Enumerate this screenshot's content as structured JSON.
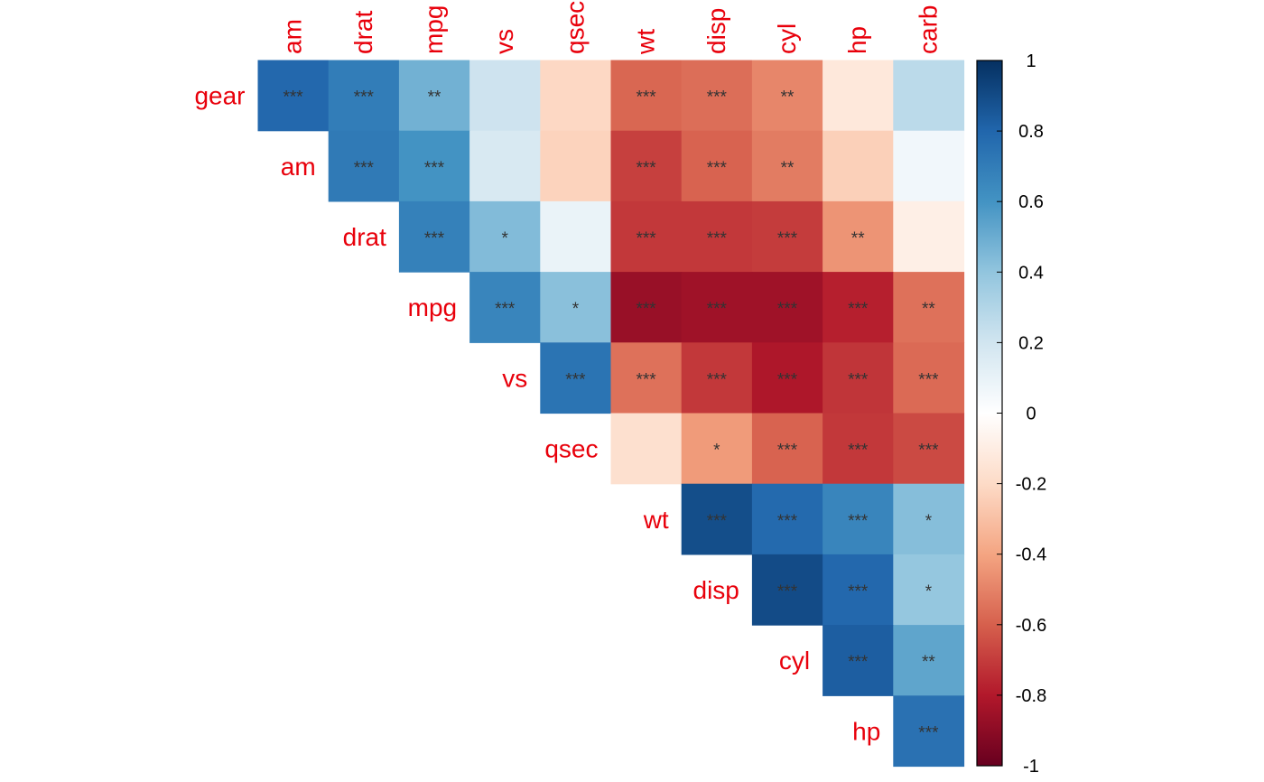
{
  "chart_data": {
    "type": "heatmap",
    "title": "",
    "columns": [
      "am",
      "drat",
      "mpg",
      "vs",
      "qsec",
      "wt",
      "disp",
      "cyl",
      "hp",
      "carb"
    ],
    "rows": [
      "gear",
      "am",
      "drat",
      "mpg",
      "vs",
      "qsec",
      "wt",
      "disp",
      "cyl",
      "hp"
    ],
    "layout": "upper-triangle",
    "cells": [
      {
        "row": "gear",
        "col": "am",
        "value": 0.79,
        "sig": "***"
      },
      {
        "row": "gear",
        "col": "drat",
        "value": 0.7,
        "sig": "***"
      },
      {
        "row": "gear",
        "col": "mpg",
        "value": 0.48,
        "sig": "**"
      },
      {
        "row": "gear",
        "col": "vs",
        "value": 0.21,
        "sig": ""
      },
      {
        "row": "gear",
        "col": "qsec",
        "value": -0.21,
        "sig": ""
      },
      {
        "row": "gear",
        "col": "wt",
        "value": -0.58,
        "sig": "***"
      },
      {
        "row": "gear",
        "col": "disp",
        "value": -0.56,
        "sig": "***"
      },
      {
        "row": "gear",
        "col": "cyl",
        "value": -0.49,
        "sig": "**"
      },
      {
        "row": "gear",
        "col": "hp",
        "value": -0.13,
        "sig": ""
      },
      {
        "row": "gear",
        "col": "carb",
        "value": 0.27,
        "sig": ""
      },
      {
        "row": "am",
        "col": "drat",
        "value": 0.71,
        "sig": "***"
      },
      {
        "row": "am",
        "col": "mpg",
        "value": 0.6,
        "sig": "***"
      },
      {
        "row": "am",
        "col": "vs",
        "value": 0.17,
        "sig": ""
      },
      {
        "row": "am",
        "col": "qsec",
        "value": -0.23,
        "sig": ""
      },
      {
        "row": "am",
        "col": "wt",
        "value": -0.69,
        "sig": "***"
      },
      {
        "row": "am",
        "col": "disp",
        "value": -0.59,
        "sig": "***"
      },
      {
        "row": "am",
        "col": "cyl",
        "value": -0.52,
        "sig": "**"
      },
      {
        "row": "am",
        "col": "hp",
        "value": -0.24,
        "sig": ""
      },
      {
        "row": "am",
        "col": "carb",
        "value": 0.06,
        "sig": ""
      },
      {
        "row": "drat",
        "col": "mpg",
        "value": 0.68,
        "sig": "***"
      },
      {
        "row": "drat",
        "col": "vs",
        "value": 0.44,
        "sig": "*"
      },
      {
        "row": "drat",
        "col": "qsec",
        "value": 0.09,
        "sig": ""
      },
      {
        "row": "drat",
        "col": "wt",
        "value": -0.71,
        "sig": "***"
      },
      {
        "row": "drat",
        "col": "disp",
        "value": -0.71,
        "sig": "***"
      },
      {
        "row": "drat",
        "col": "cyl",
        "value": -0.7,
        "sig": "***"
      },
      {
        "row": "drat",
        "col": "hp",
        "value": -0.45,
        "sig": "**"
      },
      {
        "row": "drat",
        "col": "carb",
        "value": -0.09,
        "sig": ""
      },
      {
        "row": "mpg",
        "col": "vs",
        "value": 0.66,
        "sig": "***"
      },
      {
        "row": "mpg",
        "col": "qsec",
        "value": 0.42,
        "sig": "*"
      },
      {
        "row": "mpg",
        "col": "wt",
        "value": -0.87,
        "sig": "***"
      },
      {
        "row": "mpg",
        "col": "disp",
        "value": -0.85,
        "sig": "***"
      },
      {
        "row": "mpg",
        "col": "cyl",
        "value": -0.85,
        "sig": "***"
      },
      {
        "row": "mpg",
        "col": "hp",
        "value": -0.78,
        "sig": "***"
      },
      {
        "row": "mpg",
        "col": "carb",
        "value": -0.55,
        "sig": "**"
      },
      {
        "row": "vs",
        "col": "qsec",
        "value": 0.74,
        "sig": "***"
      },
      {
        "row": "vs",
        "col": "wt",
        "value": -0.55,
        "sig": "***"
      },
      {
        "row": "vs",
        "col": "disp",
        "value": -0.71,
        "sig": "***"
      },
      {
        "row": "vs",
        "col": "cyl",
        "value": -0.81,
        "sig": "***"
      },
      {
        "row": "vs",
        "col": "hp",
        "value": -0.72,
        "sig": "***"
      },
      {
        "row": "vs",
        "col": "carb",
        "value": -0.57,
        "sig": "***"
      },
      {
        "row": "qsec",
        "col": "wt",
        "value": -0.17,
        "sig": ""
      },
      {
        "row": "qsec",
        "col": "disp",
        "value": -0.43,
        "sig": "*"
      },
      {
        "row": "qsec",
        "col": "cyl",
        "value": -0.59,
        "sig": "***"
      },
      {
        "row": "qsec",
        "col": "hp",
        "value": -0.71,
        "sig": "***"
      },
      {
        "row": "qsec",
        "col": "carb",
        "value": -0.66,
        "sig": "***"
      },
      {
        "row": "wt",
        "col": "disp",
        "value": 0.89,
        "sig": "***"
      },
      {
        "row": "wt",
        "col": "cyl",
        "value": 0.78,
        "sig": "***"
      },
      {
        "row": "wt",
        "col": "hp",
        "value": 0.66,
        "sig": "***"
      },
      {
        "row": "wt",
        "col": "carb",
        "value": 0.43,
        "sig": "*"
      },
      {
        "row": "disp",
        "col": "cyl",
        "value": 0.9,
        "sig": "***"
      },
      {
        "row": "disp",
        "col": "hp",
        "value": 0.79,
        "sig": "***"
      },
      {
        "row": "disp",
        "col": "carb",
        "value": 0.39,
        "sig": "*"
      },
      {
        "row": "cyl",
        "col": "hp",
        "value": 0.83,
        "sig": "***"
      },
      {
        "row": "cyl",
        "col": "carb",
        "value": 0.53,
        "sig": "**"
      },
      {
        "row": "hp",
        "col": "carb",
        "value": 0.75,
        "sig": "***"
      }
    ],
    "colorbar": {
      "range": [
        -1,
        1
      ],
      "ticks": [
        1,
        0.8,
        0.6,
        0.4,
        0.2,
        0,
        -0.2,
        -0.4,
        -0.6,
        -0.8,
        -1
      ],
      "tick_labels": [
        "1",
        "0.8",
        "0.6",
        "0.4",
        "0.2",
        "0",
        "-0.2",
        "-0.4",
        "-0.6",
        "-0.8",
        "-1"
      ],
      "palette": [
        "#67001F",
        "#B2182B",
        "#D6604D",
        "#F4A582",
        "#FDDBC7",
        "#FFFFFF",
        "#D1E5F0",
        "#92C5DE",
        "#4393C3",
        "#2166AC",
        "#053061"
      ]
    },
    "label_color": "#E8000B",
    "sig_text_color": "#333333"
  }
}
